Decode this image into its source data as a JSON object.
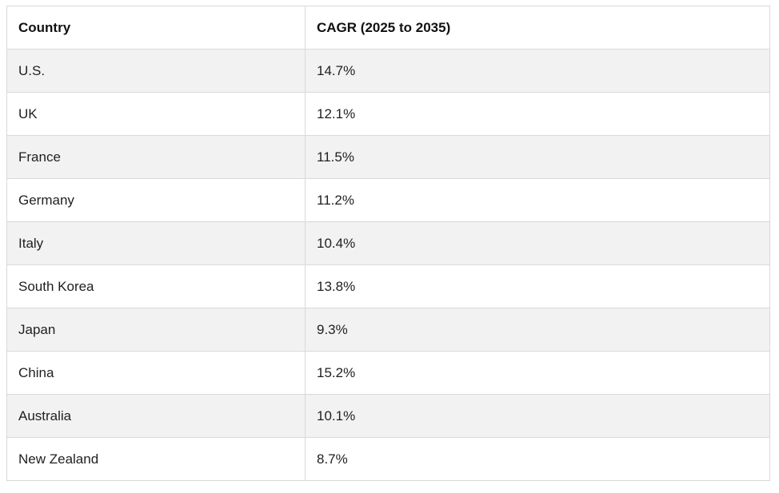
{
  "table": {
    "headers": [
      "Country",
      "CAGR (2025 to 2035)"
    ],
    "rows": [
      [
        "U.S.",
        "14.7%"
      ],
      [
        "UK",
        "12.1%"
      ],
      [
        "France",
        "11.5%"
      ],
      [
        "Germany",
        "11.2%"
      ],
      [
        "Italy",
        "10.4%"
      ],
      [
        "South Korea",
        "13.8%"
      ],
      [
        "Japan",
        "9.3%"
      ],
      [
        "China",
        "15.2%"
      ],
      [
        "Australia",
        "10.1%"
      ],
      [
        "New Zealand",
        "8.7%"
      ]
    ]
  }
}
